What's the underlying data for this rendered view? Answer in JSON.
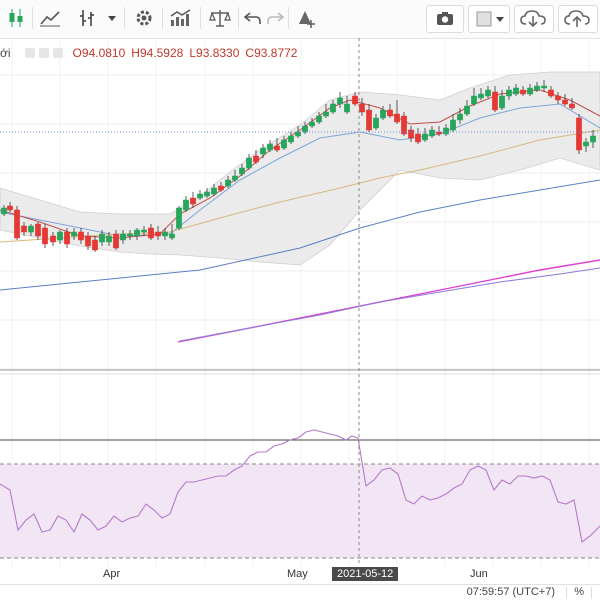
{
  "legend": {
    "title_partial": "ới",
    "open_label": "O",
    "open": "94.0810",
    "high_label": "H",
    "high": "94.5928",
    "low_label": "L",
    "low": "93.8330",
    "close_label": "C",
    "close": "93.8772"
  },
  "time_axis": {
    "labels": [
      "Apr",
      "May",
      "Jun"
    ],
    "crosshair_date": "2021-05-12"
  },
  "statusbar": {
    "time": "07:59:57 (UTC+7)",
    "percent": "%"
  },
  "colors": {
    "up": "#26a65b",
    "down": "#e53935",
    "bollinger_fill": "#e9e9e9",
    "rsi_fill": "#f2e6f5",
    "rsi_line": "#b57acb",
    "ma_fast": "#c0504d",
    "ma_mid": "#7ea4d9",
    "ma_slow": "#d9b77e",
    "ma_long": "#5b7fbf",
    "ma_magenta": "#e040d0"
  },
  "toolbar_icons": [
    "candles-icon",
    "line-chart-icon",
    "bar-chart-icon",
    "dropdown-icon",
    "settings-icon",
    "indicators-icon",
    "scale-icon",
    "undo-icon",
    "redo-icon",
    "drawing-icon",
    "camera-icon",
    "color-box-icon",
    "dropdown-icon",
    "cloud-download-icon",
    "cloud-upload-icon"
  ]
}
